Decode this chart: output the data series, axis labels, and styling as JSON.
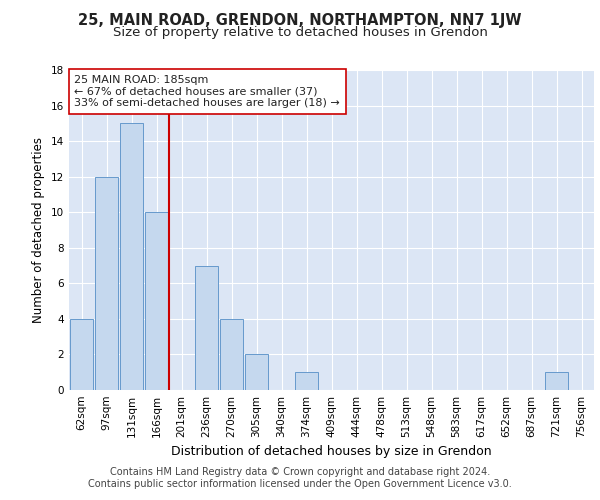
{
  "title1": "25, MAIN ROAD, GRENDON, NORTHAMPTON, NN7 1JW",
  "title2": "Size of property relative to detached houses in Grendon",
  "xlabel": "Distribution of detached houses by size in Grendon",
  "ylabel": "Number of detached properties",
  "categories": [
    "62sqm",
    "97sqm",
    "131sqm",
    "166sqm",
    "201sqm",
    "236sqm",
    "270sqm",
    "305sqm",
    "340sqm",
    "374sqm",
    "409sqm",
    "444sqm",
    "478sqm",
    "513sqm",
    "548sqm",
    "583sqm",
    "617sqm",
    "652sqm",
    "687sqm",
    "721sqm",
    "756sqm"
  ],
  "values": [
    4,
    12,
    15,
    10,
    0,
    7,
    4,
    2,
    0,
    1,
    0,
    0,
    0,
    0,
    0,
    0,
    0,
    0,
    0,
    1,
    0
  ],
  "bar_color": "#c5d8ee",
  "bar_edgecolor": "#6699cc",
  "bar_linewidth": 0.7,
  "vline_x": 3.5,
  "vline_color": "#cc0000",
  "annotation_line1": "25 MAIN ROAD: 185sqm",
  "annotation_line2": "← 67% of detached houses are smaller (37)",
  "annotation_line3": "33% of semi-detached houses are larger (18) →",
  "annotation_box_color": "#ffffff",
  "annotation_box_edgecolor": "#cc0000",
  "ylim": [
    0,
    18
  ],
  "yticks": [
    0,
    2,
    4,
    6,
    8,
    10,
    12,
    14,
    16,
    18
  ],
  "background_color": "#dce6f5",
  "grid_color": "#ffffff",
  "footer_line1": "Contains HM Land Registry data © Crown copyright and database right 2024.",
  "footer_line2": "Contains public sector information licensed under the Open Government Licence v3.0.",
  "title1_fontsize": 10.5,
  "title2_fontsize": 9.5,
  "xlabel_fontsize": 9,
  "ylabel_fontsize": 8.5,
  "tick_fontsize": 7.5,
  "annotation_fontsize": 8,
  "footer_fontsize": 7
}
